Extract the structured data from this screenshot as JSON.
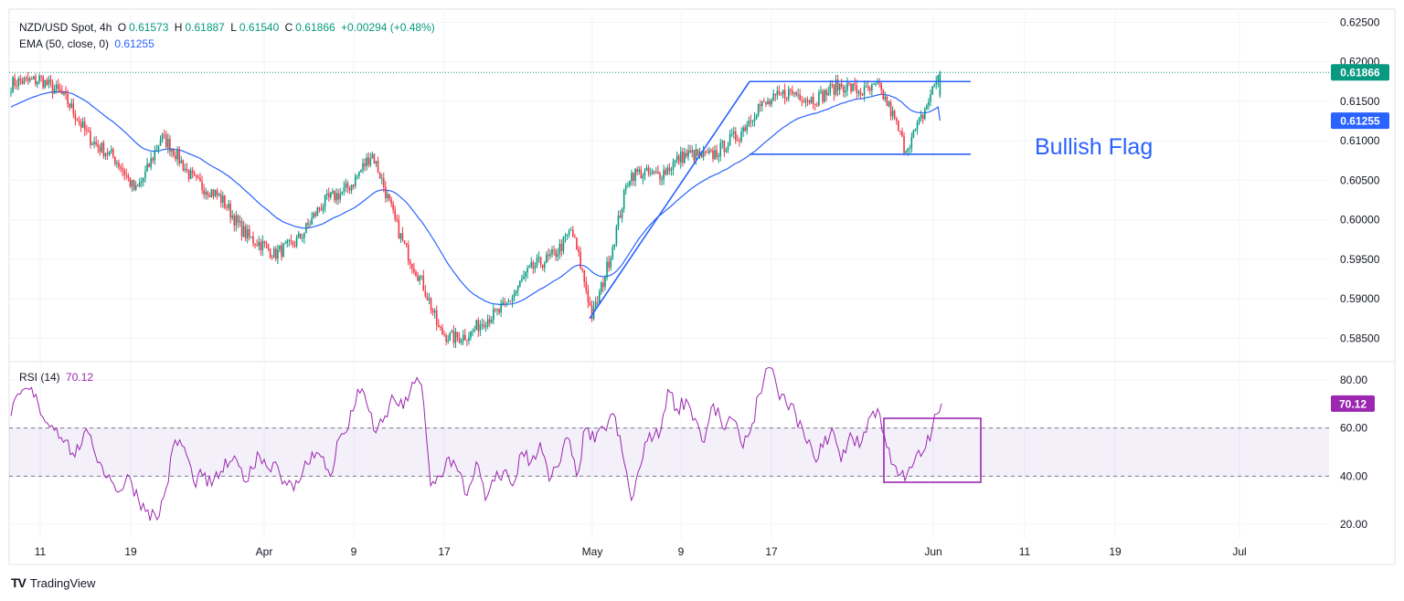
{
  "header": {
    "symbol": "NZD/USD Spot, 4h",
    "open_label": "O",
    "open": "0.61573",
    "high_label": "H",
    "high": "0.61887",
    "low_label": "L",
    "low": "0.61540",
    "close_label": "C",
    "close": "0.61866",
    "change": "+0.00294 (+0.48%)",
    "ema_label": "EMA (50, close, 0)",
    "ema_value": "0.61255",
    "rsi_label": "RSI (14)",
    "rsi_value": "70.12"
  },
  "annotation": "Bullish Flag",
  "footer": {
    "brand": "TradingView",
    "logo": "TV"
  },
  "colors": {
    "up": "#089981",
    "down": "#f23645",
    "ema": "#2962ff",
    "rsi": "#9c27b0",
    "grid": "#f0f3fa",
    "text": "#131722"
  },
  "chart_data": [
    {
      "type": "candlestick",
      "title": "NZD/USD Spot, 4h",
      "ylim": [
        0.5825,
        0.6262
      ],
      "y_ticks": [
        "0.62500",
        "0.62000",
        "0.61500",
        "0.61000",
        "0.60500",
        "0.60000",
        "0.59500",
        "0.59000",
        "0.58500"
      ],
      "x_ticks": [
        "11",
        "19",
        "Apr",
        "9",
        "17",
        "May",
        "9",
        "17",
        "Jun",
        "11",
        "19",
        "Jul"
      ],
      "x_tick_index": [
        0,
        8,
        21,
        29,
        37,
        50,
        58,
        66,
        81,
        89,
        97,
        107
      ],
      "price_badges": [
        {
          "label": "0.61866",
          "value": 0.61866,
          "color": "#089981"
        },
        {
          "label": "0.61255",
          "value": 0.61255,
          "color": "#2962ff"
        }
      ],
      "last_price_line": 0.61866,
      "key_points": [
        {
          "date": "Mar 11",
          "price": 0.6185
        },
        {
          "date": "Mar 20",
          "price": 0.604
        },
        {
          "date": "Mar 21",
          "price": 0.61
        },
        {
          "date": "Apr 2",
          "price": 0.595
        },
        {
          "date": "Apr 9",
          "price": 0.6078
        },
        {
          "date": "Apr 17",
          "price": 0.586
        },
        {
          "date": "Apr 19",
          "price": 0.5852
        },
        {
          "date": "Apr 29",
          "price": 0.5985
        },
        {
          "date": "May 1",
          "price": 0.5875
        },
        {
          "date": "May 4",
          "price": 0.605
        },
        {
          "date": "May 14",
          "price": 0.61
        },
        {
          "date": "May 16",
          "price": 0.615
        },
        {
          "date": "May 28",
          "price": 0.617
        },
        {
          "date": "May 30",
          "price": 0.609
        },
        {
          "date": "Jun 3",
          "price": 0.6187
        }
      ],
      "ema_series": {
        "name": "EMA (50, close, 0)",
        "last": 0.61255
      },
      "drawings": {
        "flagpole": [
          {
            "date": "May 1",
            "price": 0.5875
          },
          {
            "date": "May 15",
            "price": 0.6175
          }
        ],
        "flag_upper": [
          {
            "date": "May 15",
            "price": 0.6175
          },
          {
            "date": "Jun 5",
            "price": 0.6175
          }
        ],
        "flag_lower": [
          {
            "date": "May 15",
            "price": 0.6083
          },
          {
            "date": "Jun 5",
            "price": 0.6083
          }
        ],
        "label": "Bullish Flag"
      }
    },
    {
      "type": "line",
      "title": "RSI (14)",
      "ylim": [
        14,
        86
      ],
      "y_ticks": [
        "80.00",
        "60.00",
        "40.00",
        "20.00"
      ],
      "band": [
        40,
        60
      ],
      "last": 70.12,
      "series": [
        {
          "name": "RSI (14)",
          "values": [
            65,
            74,
            76,
            70,
            62,
            60,
            55,
            48,
            58,
            52,
            44,
            38,
            34,
            40,
            30,
            26,
            22,
            35,
            55,
            52,
            38,
            40,
            36,
            42,
            46,
            44,
            38,
            50,
            44,
            46,
            38,
            34,
            42,
            50,
            48,
            40,
            56,
            60,
            76,
            70,
            58,
            65,
            72,
            68,
            79,
            78,
            36,
            40,
            48,
            42,
            32,
            46,
            30,
            38,
            42,
            36,
            50,
            46,
            54,
            38,
            44,
            56,
            40,
            60,
            54,
            60,
            66,
            50,
            30,
            44,
            58,
            56,
            76,
            68,
            72,
            64,
            54,
            70,
            60,
            64,
            54,
            58,
            74,
            86,
            76,
            70,
            66,
            56,
            48,
            52,
            60,
            46,
            58,
            52,
            64,
            68,
            52,
            44,
            38,
            46,
            50,
            60,
            70.12
          ]
        }
      ]
    }
  ]
}
